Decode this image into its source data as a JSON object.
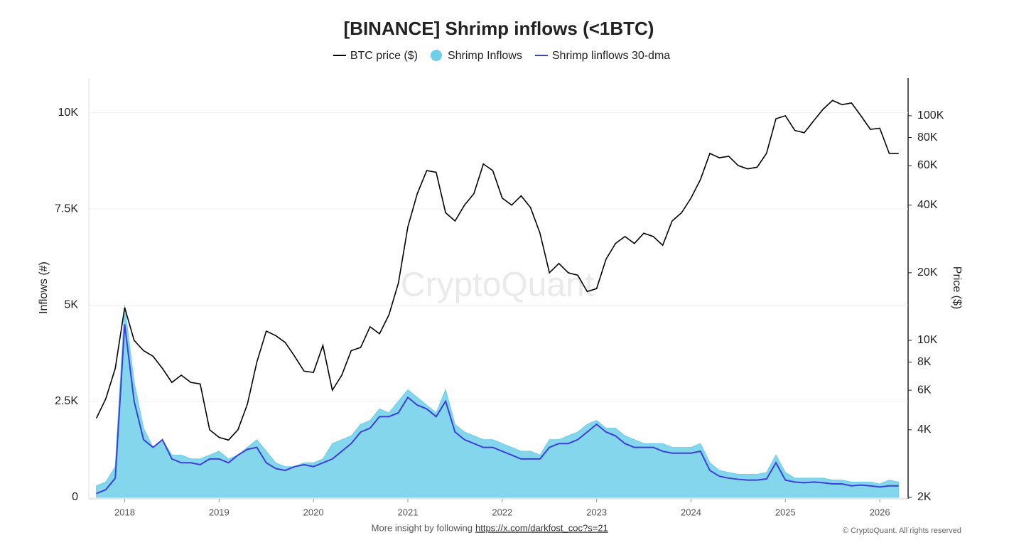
{
  "chart_data": {
    "type": "line",
    "title": "[BINANCE] Shrimp inflows (<1BTC)",
    "watermark": "CryptoQuant",
    "y_label": "Inflows (#)",
    "y2_label": "Price ($)",
    "footer": "More insight by following ",
    "link": "https://x.com/darkfost_coc?s=21",
    "copyright": "© CryptoQuant. All rights reserved",
    "x": [
      2017.7,
      2017.8,
      2017.9,
      2018.0,
      2018.1,
      2018.2,
      2018.3,
      2018.4,
      2018.5,
      2018.6,
      2018.7,
      2018.8,
      2018.9,
      2019.0,
      2019.1,
      2019.2,
      2019.3,
      2019.4,
      2019.5,
      2019.6,
      2019.7,
      2019.8,
      2019.9,
      2020.0,
      2020.1,
      2020.2,
      2020.3,
      2020.4,
      2020.5,
      2020.6,
      2020.7,
      2020.8,
      2020.9,
      2021.0,
      2021.1,
      2021.2,
      2021.3,
      2021.4,
      2021.5,
      2021.6,
      2021.7,
      2021.8,
      2021.9,
      2022.0,
      2022.1,
      2022.2,
      2022.3,
      2022.4,
      2022.5,
      2022.6,
      2022.7,
      2022.8,
      2022.9,
      2023.0,
      2023.1,
      2023.2,
      2023.3,
      2023.4,
      2023.5,
      2023.6,
      2023.7,
      2023.8,
      2023.9,
      2024.0,
      2024.1,
      2024.2,
      2024.3,
      2024.4,
      2024.5,
      2024.6,
      2024.7,
      2024.8,
      2024.9,
      2025.0,
      2025.1,
      2025.2,
      2025.3,
      2025.4,
      2025.5,
      2025.6,
      2025.7,
      2025.8,
      2025.9,
      2026.0,
      2026.1,
      2026.2
    ],
    "xlim": [
      2017.62,
      2026.3
    ],
    "xticks": [
      2018,
      2019,
      2020,
      2021,
      2022,
      2023,
      2024,
      2025,
      2026
    ],
    "ylim": [
      0,
      10900
    ],
    "yticks": [
      0,
      {
        "value": 2500,
        "label": "2.5K"
      },
      {
        "value": 5000,
        "label": "5K"
      },
      {
        "value": 7500,
        "label": "7.5K"
      },
      {
        "value": 10000,
        "label": "10K"
      }
    ],
    "y2lim": [
      2000,
      147000
    ],
    "y2scale": "log",
    "y2ticks": [
      {
        "value": 2000,
        "label": "2K"
      },
      {
        "value": 4000,
        "label": "4K"
      },
      {
        "value": 6000,
        "label": "6K"
      },
      {
        "value": 8000,
        "label": "8K"
      },
      {
        "value": 10000,
        "label": "10K"
      },
      {
        "value": 20000,
        "label": "20K"
      },
      {
        "value": 40000,
        "label": "40K"
      },
      {
        "value": 60000,
        "label": "60K"
      },
      {
        "value": 80000,
        "label": "80K"
      },
      {
        "value": 100000,
        "label": "100K"
      }
    ],
    "grid": true,
    "series": [
      {
        "name": "BTC price ($)",
        "color": "#000000",
        "type": "line",
        "axis": "y2",
        "values": [
          4500,
          5500,
          7500,
          14000,
          10000,
          9000,
          8500,
          7500,
          6500,
          7000,
          6500,
          6400,
          4000,
          3700,
          3600,
          4000,
          5200,
          8000,
          11000,
          10500,
          9800,
          8500,
          7300,
          7200,
          9500,
          6000,
          7000,
          9000,
          9300,
          11500,
          10700,
          13000,
          18000,
          32000,
          45000,
          57000,
          56000,
          37000,
          34000,
          40000,
          45000,
          61000,
          57000,
          43000,
          40000,
          44000,
          39000,
          30000,
          20000,
          22000,
          20000,
          19500,
          16500,
          17000,
          23000,
          27000,
          29000,
          27000,
          30000,
          29000,
          26500,
          34000,
          37000,
          43000,
          52000,
          68000,
          65000,
          66000,
          60000,
          58000,
          59000,
          68000,
          97000,
          100000,
          86000,
          84000,
          95000,
          107000,
          117000,
          112000,
          114000,
          100000,
          87000,
          88000,
          68000,
          68000
        ]
      },
      {
        "name": "Shrimp Inflows",
        "color": "#6dcfe8",
        "type": "area",
        "values": [
          300,
          400,
          800,
          5000,
          3000,
          1800,
          1300,
          1500,
          1100,
          1100,
          1000,
          1000,
          1100,
          1200,
          1000,
          1100,
          1300,
          1500,
          1200,
          900,
          800,
          800,
          900,
          900,
          1000,
          1400,
          1500,
          1600,
          1900,
          2000,
          2300,
          2200,
          2500,
          2800,
          2600,
          2400,
          2200,
          2800,
          1900,
          1700,
          1600,
          1500,
          1500,
          1400,
          1300,
          1200,
          1200,
          1100,
          1500,
          1500,
          1600,
          1700,
          1900,
          2000,
          1800,
          1800,
          1600,
          1500,
          1400,
          1400,
          1400,
          1300,
          1300,
          1300,
          1400,
          900,
          700,
          650,
          600,
          600,
          600,
          650,
          1100,
          650,
          500,
          500,
          500,
          500,
          450,
          450,
          400,
          400,
          400,
          350,
          450,
          400
        ]
      },
      {
        "name": "Shrimp linflows 30-dma",
        "color": "#3c3fd8",
        "type": "line",
        "values": [
          100,
          200,
          500,
          4500,
          2500,
          1500,
          1300,
          1500,
          1000,
          900,
          900,
          850,
          1000,
          1000,
          900,
          1100,
          1250,
          1300,
          900,
          750,
          700,
          800,
          850,
          800,
          900,
          1000,
          1200,
          1400,
          1700,
          1800,
          2100,
          2100,
          2200,
          2600,
          2400,
          2300,
          2100,
          2500,
          1700,
          1500,
          1400,
          1300,
          1300,
          1200,
          1100,
          1000,
          1000,
          1000,
          1300,
          1400,
          1400,
          1500,
          1700,
          1900,
          1700,
          1600,
          1400,
          1300,
          1300,
          1300,
          1200,
          1150,
          1150,
          1150,
          1200,
          700,
          550,
          500,
          470,
          450,
          450,
          480,
          900,
          450,
          400,
          380,
          400,
          380,
          350,
          350,
          300,
          320,
          300,
          270,
          300,
          300
        ]
      }
    ]
  }
}
